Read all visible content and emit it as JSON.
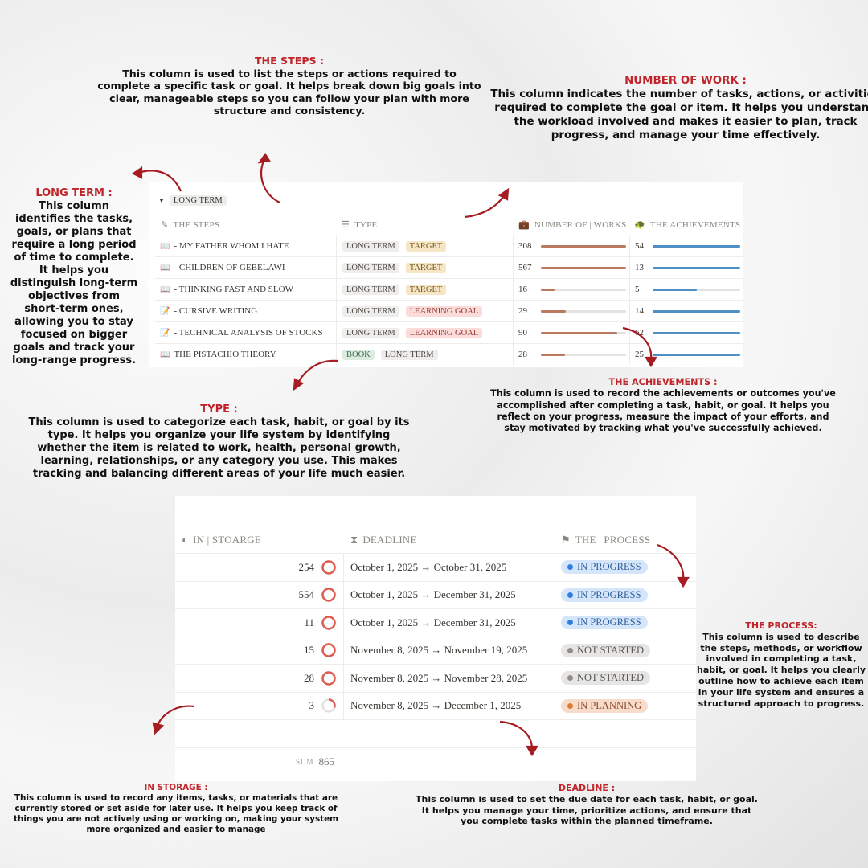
{
  "notes": {
    "steps": {
      "title": "THE STEPS  :",
      "body": "This column is used to list the steps or actions required to complete a specific task or goal. It helps break down big goals into clear, manageable steps so you can follow your plan with more structure and consistency."
    },
    "work": {
      "title": "NUMBER OF WORK :",
      "body": "This column indicates the number of tasks, actions, or activities required to complete the goal or item. It helps you understand the workload involved and makes it easier to plan, track progress, and manage your time effectively."
    },
    "long_term": {
      "title": "LONG TERM  :",
      "body": "This column identifies the tasks, goals, or plans that require a long period of time to complete. It helps you distinguish long-term objectives from short-term ones, allowing you to stay focused on bigger goals and track your long-range progress."
    },
    "type": {
      "title": "TYPE  :",
      "body": "This column is used to categorize each task, habit, or goal by its type. It helps you organize your life system by identifying whether the item is related to work, health, personal growth, learning, relationships, or any category you use. This makes tracking and balancing different areas of your life much easier."
    },
    "achievements": {
      "title": "THE ACHIEVEMENTS :",
      "body": "This column is used to record the achievements or outcomes you've accomplished after completing a task, habit, or goal. It helps you reflect on your progress, measure the impact of your efforts, and stay motivated by tracking what you've successfully achieved."
    },
    "process": {
      "title": "THE PROCESS:",
      "body": "This column is used to describe the steps, methods, or workflow involved in completing a task, habit, or goal. It helps you clearly outline how to achieve each item in your life system and ensures a structured approach to progress."
    },
    "storage": {
      "title": "IN STORAGE :",
      "body": "This column is used to record any items, tasks, or materials that are currently stored or set aside for later use. It helps you keep track of things you are not actively using or working on, making your system more organized and easier to manage"
    },
    "deadline": {
      "title": "DEADLINE :",
      "body": "This column is used to set the due date for each task, habit, or goal. It helps you manage your time, prioritize actions, and ensure that you complete tasks within the planned timeframe."
    }
  },
  "top_table": {
    "group_label": "LONG TERM",
    "headers": {
      "steps": "THE STEPS",
      "type": "TYPE",
      "works": "NUMBER OF | WORKS",
      "achievements": "THE ACHIEVEMENTS"
    },
    "rows": [
      {
        "icon": "book",
        "name": "- MY FATHER WHOM I HATE",
        "tags": [
          "LONG TERM",
          "TARGET"
        ],
        "works": "308",
        "works_fill": 1.0,
        "ach": "54",
        "ach_fill": 1.0
      },
      {
        "icon": "book",
        "name": "- CHILDREN OF GEBELAWI",
        "tags": [
          "LONG TERM",
          "TARGET"
        ],
        "works": "567",
        "works_fill": 1.0,
        "ach": "13",
        "ach_fill": 1.0
      },
      {
        "icon": "book",
        "name": "- THINKING FAST AND SLOW",
        "tags": [
          "LONG TERM",
          "TARGET"
        ],
        "works": "16",
        "works_fill": 0.16,
        "ach": "5",
        "ach_fill": 0.5
      },
      {
        "icon": "memo",
        "name": "- CURSIVE WRITING",
        "tags": [
          "LONG TERM",
          "LEARNING GOAL"
        ],
        "works": "29",
        "works_fill": 0.29,
        "ach": "14",
        "ach_fill": 1.0
      },
      {
        "icon": "memo",
        "name": "- TECHNICAL ANALYSIS OF STOCKS",
        "tags": [
          "LONG TERM",
          "LEARNING GOAL"
        ],
        "works": "90",
        "works_fill": 0.9,
        "ach": "62",
        "ach_fill": 1.0
      },
      {
        "icon": "book",
        "name": "THE PISTACHIO THEORY",
        "tags": [
          "BOOK",
          "LONG TERM"
        ],
        "works": "28",
        "works_fill": 0.28,
        "ach": "25",
        "ach_fill": 1.0
      }
    ]
  },
  "bottom_table": {
    "headers": {
      "storage": "IN | STOARGE",
      "deadline": "DEADLINE",
      "process": "THE | PROCESS"
    },
    "rows": [
      {
        "storage": "254",
        "ring": 1.0,
        "deadline": "October 1, 2025 → October 31, 2025",
        "status": "IN PROGRESS"
      },
      {
        "storage": "554",
        "ring": 1.0,
        "deadline": "October 1, 2025 → December 31, 2025",
        "status": "IN PROGRESS"
      },
      {
        "storage": "11",
        "ring": 1.0,
        "deadline": "October 1, 2025 → December 31, 2025",
        "status": "IN PROGRESS"
      },
      {
        "storage": "15",
        "ring": 1.0,
        "deadline": "November 8, 2025 → November 19, 2025",
        "status": "NOT STARTED"
      },
      {
        "storage": "28",
        "ring": 1.0,
        "deadline": "November 8, 2025 → November 28, 2025",
        "status": "NOT STARTED"
      },
      {
        "storage": "3",
        "ring": 0.3,
        "deadline": "November 8, 2025 → December 1, 2025",
        "status": "IN PLANNING"
      }
    ],
    "sum_label": "SUM",
    "sum_value": "865"
  },
  "colors": {
    "accent": "#c0252b",
    "works_bar": "#b97a62",
    "ach_bar": "#4f8fc4",
    "ring": "#e05a4f",
    "tags": {
      "LONG TERM": [
        "#eeedeb",
        "#4a4842"
      ],
      "TARGET": [
        "#f6e6c6",
        "#7a5a22"
      ],
      "LEARNING GOAL": [
        "#fadcdb",
        "#9a3b36"
      ],
      "BOOK": [
        "#dcebdf",
        "#3d6b48"
      ]
    },
    "status": {
      "IN PROGRESS": [
        "#d6e6fa",
        "#2f5f9a",
        "#2e7fe0"
      ],
      "NOT STARTED": [
        "#e6e5e3",
        "#555",
        "#8f8d89"
      ],
      "IN PLANNING": [
        "#f8dccb",
        "#8a4a24",
        "#e07b2e"
      ]
    }
  }
}
